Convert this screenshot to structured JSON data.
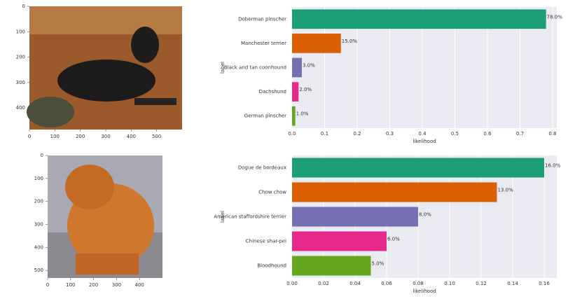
{
  "chart_data": [
    {
      "type": "image",
      "xlim": [
        0,
        600
      ],
      "ylim": [
        485,
        0
      ],
      "xticks": [
        0,
        100,
        200,
        300,
        400,
        500
      ],
      "yticks": [
        0,
        100,
        200,
        300,
        400
      ]
    },
    {
      "type": "hbar",
      "categories": [
        "Doberman pinscher",
        "Manchester terrier",
        "Black and tan coonhound",
        "Dachshund",
        "German pinscher"
      ],
      "values": [
        0.78,
        0.15,
        0.03,
        0.02,
        0.01
      ],
      "value_labels": [
        "78.0%",
        "15.0%",
        "3.0%",
        "2.0%",
        "1.0%"
      ],
      "colors": [
        "#1b9e77",
        "#d95f02",
        "#7570b3",
        "#e7298a",
        "#66a61e"
      ],
      "xlim": [
        0,
        0.813
      ],
      "xticks": [
        {
          "value": 0,
          "label": "0.0"
        },
        0.1,
        0.2,
        0.3,
        0.4,
        0.5,
        0.6,
        0.7,
        0.8
      ],
      "xlabel": "likelihood",
      "ylabel": "label",
      "grid": true
    },
    {
      "type": "image",
      "xlim": [
        0,
        500
      ],
      "ylim": [
        533,
        0
      ],
      "xticks": [
        0,
        100,
        200,
        300,
        400
      ],
      "yticks": [
        0,
        100,
        200,
        300,
        400,
        500
      ]
    },
    {
      "type": "hbar",
      "categories": [
        "Dogue de bordeaux",
        "Chow chow",
        "American staffordshire terrier",
        "Chinese shar-pei",
        "Bloodhound"
      ],
      "values": [
        0.16,
        0.13,
        0.08,
        0.06,
        0.05
      ],
      "value_labels": [
        "16.0%",
        "13.0%",
        "8.0%",
        "6.0%",
        "5.0%"
      ],
      "colors": [
        "#1b9e77",
        "#d95f02",
        "#7570b3",
        "#e7298a",
        "#66a61e"
      ],
      "xlim": [
        0,
        0.168
      ],
      "xticks": [
        {
          "value": 0,
          "label": "0.00"
        },
        0.02,
        0.04,
        0.06,
        0.08,
        {
          "value": 0.1,
          "label": "0.10"
        },
        0.12,
        0.14,
        0.16
      ],
      "xlabel": "likelihood",
      "ylabel": "label",
      "grid": true
    }
  ]
}
